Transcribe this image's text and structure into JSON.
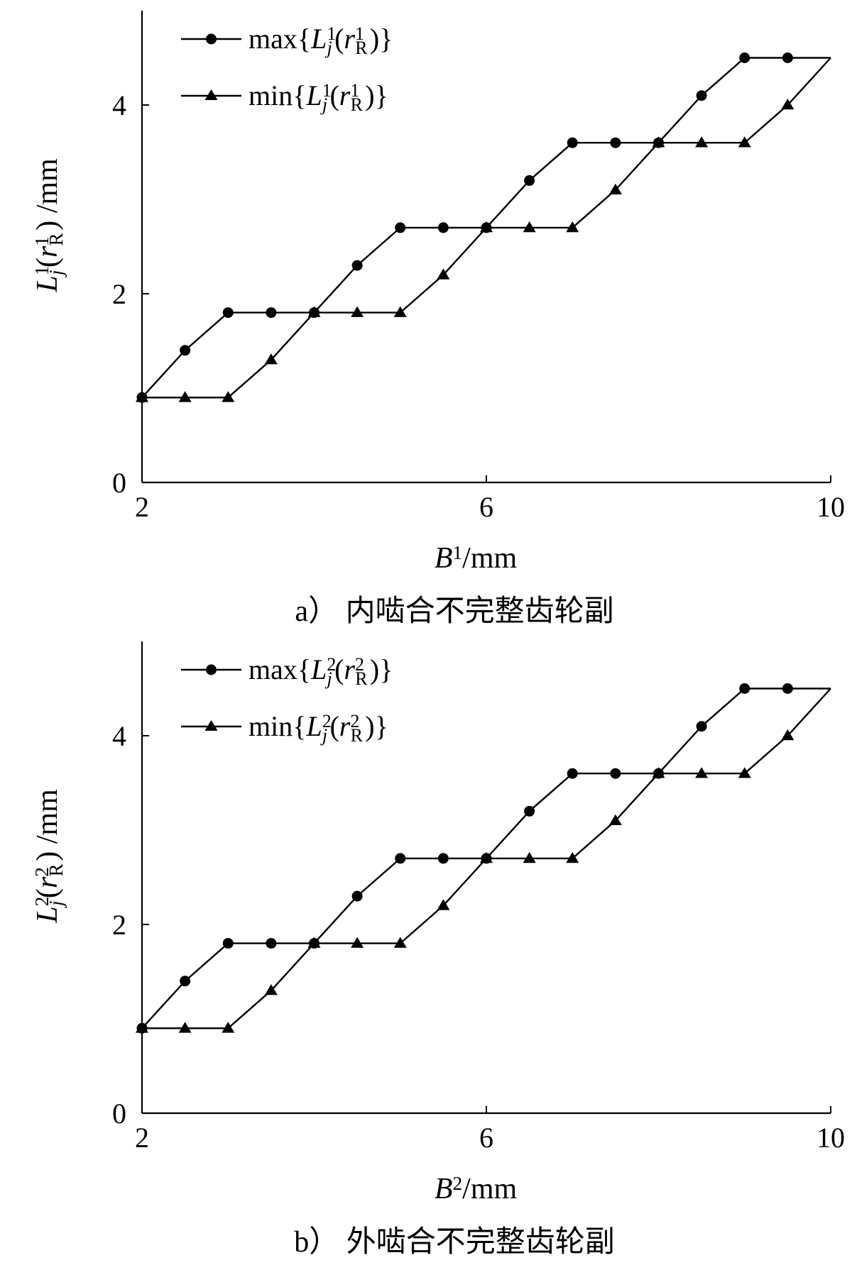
{
  "chart_data": [
    {
      "type": "line",
      "caption": "a） 内啮合不完整齿轮副",
      "xlabel": "B¹/mm",
      "ylabel": "L¹j(r¹R) /mm",
      "xlim": [
        2,
        10
      ],
      "ylim": [
        0,
        5
      ],
      "xticks": [
        "2",
        "6",
        "10"
      ],
      "yticks": [
        "0",
        "2",
        "4"
      ],
      "grid": false,
      "legend_position": "top-left",
      "series": [
        {
          "name": "max{L¹j(r¹R)}",
          "marker": "circle",
          "x": [
            2,
            2.5,
            3,
            3.5,
            4,
            4.5,
            5,
            5.5,
            6,
            6.5,
            7,
            7.5,
            8,
            8.5,
            9,
            9.5,
            10
          ],
          "y": [
            0.9,
            1.4,
            1.8,
            1.8,
            1.8,
            2.3,
            2.7,
            2.7,
            2.7,
            3.2,
            3.6,
            3.6,
            3.6,
            4.1,
            4.5,
            4.5,
            4.5
          ],
          "marker_x": [
            2,
            2.5,
            3,
            3.5,
            4,
            4.5,
            5,
            5.5,
            6,
            6.5,
            7,
            7.5,
            8,
            8.5,
            9,
            9.5
          ],
          "marker_y": [
            0.9,
            1.4,
            1.8,
            1.8,
            1.8,
            2.3,
            2.7,
            2.7,
            2.7,
            3.2,
            3.6,
            3.6,
            3.6,
            4.1,
            4.5,
            4.5
          ]
        },
        {
          "name": "min{L¹j(r¹R)}",
          "marker": "triangle",
          "x": [
            2,
            2.5,
            3,
            3.5,
            4,
            4.5,
            5,
            5.5,
            6,
            6.5,
            7,
            7.5,
            8,
            8.5,
            9,
            9.5,
            10
          ],
          "y": [
            0.9,
            0.9,
            0.9,
            1.3,
            1.8,
            1.8,
            1.8,
            2.2,
            2.7,
            2.7,
            2.7,
            3.1,
            3.6,
            3.6,
            3.6,
            4.0,
            4.5
          ],
          "marker_x": [
            2,
            2.5,
            3,
            3.5,
            4,
            4.5,
            5,
            5.5,
            6,
            6.5,
            7,
            7.5,
            8,
            8.5,
            9,
            9.5
          ],
          "marker_y": [
            0.9,
            0.9,
            0.9,
            1.3,
            1.8,
            1.8,
            1.8,
            2.2,
            2.7,
            2.7,
            2.7,
            3.1,
            3.6,
            3.6,
            3.6,
            4.0
          ]
        }
      ]
    },
    {
      "type": "line",
      "caption": "b） 外啮合不完整齿轮副",
      "xlabel": "B²/mm",
      "ylabel": "L²j(r²R) /mm",
      "xlim": [
        2,
        10
      ],
      "ylim": [
        0,
        5
      ],
      "xticks": [
        "2",
        "6",
        "10"
      ],
      "yticks": [
        "0",
        "2",
        "4"
      ],
      "grid": false,
      "legend_position": "top-left",
      "series": [
        {
          "name": "max{L²j(r²R)}",
          "marker": "circle",
          "x": [
            2,
            2.5,
            3,
            3.5,
            4,
            4.5,
            5,
            5.5,
            6,
            6.5,
            7,
            7.5,
            8,
            8.5,
            9,
            9.5,
            10
          ],
          "y": [
            0.9,
            1.4,
            1.8,
            1.8,
            1.8,
            2.3,
            2.7,
            2.7,
            2.7,
            3.2,
            3.6,
            3.6,
            3.6,
            4.1,
            4.5,
            4.5,
            4.5
          ],
          "marker_x": [
            2,
            2.5,
            3,
            3.5,
            4,
            4.5,
            5,
            5.5,
            6,
            6.5,
            7,
            7.5,
            8,
            8.5,
            9,
            9.5
          ],
          "marker_y": [
            0.9,
            1.4,
            1.8,
            1.8,
            1.8,
            2.3,
            2.7,
            2.7,
            2.7,
            3.2,
            3.6,
            3.6,
            3.6,
            4.1,
            4.5,
            4.5
          ]
        },
        {
          "name": "min{L²j(r²R)}",
          "marker": "triangle",
          "x": [
            2,
            2.5,
            3,
            3.5,
            4,
            4.5,
            5,
            5.5,
            6,
            6.5,
            7,
            7.5,
            8,
            8.5,
            9,
            9.5,
            10
          ],
          "y": [
            0.9,
            0.9,
            0.9,
            1.3,
            1.8,
            1.8,
            1.8,
            2.2,
            2.7,
            2.7,
            2.7,
            3.1,
            3.6,
            3.6,
            3.6,
            4.0,
            4.5
          ],
          "marker_x": [
            2,
            2.5,
            3,
            3.5,
            4,
            4.5,
            5,
            5.5,
            6,
            6.5,
            7,
            7.5,
            8,
            8.5,
            9,
            9.5
          ],
          "marker_y": [
            0.9,
            0.9,
            0.9,
            1.3,
            1.8,
            1.8,
            1.8,
            2.2,
            2.7,
            2.7,
            2.7,
            3.1,
            3.6,
            3.6,
            3.6,
            4.0
          ]
        }
      ]
    }
  ]
}
